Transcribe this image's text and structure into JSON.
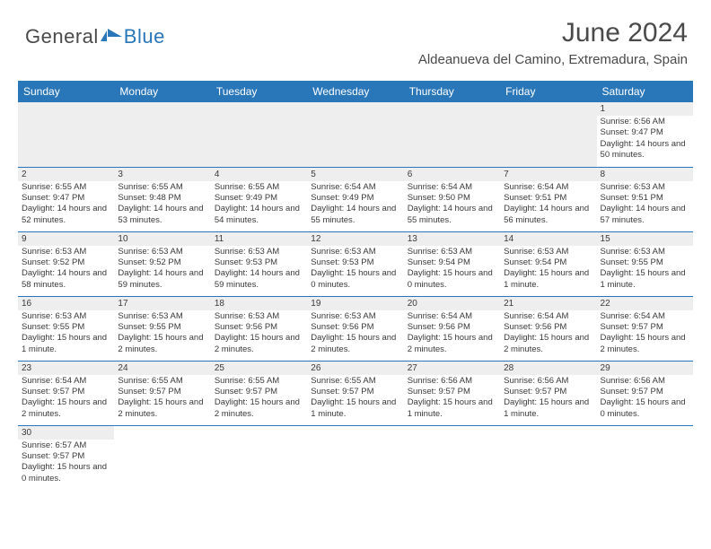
{
  "logo": {
    "part1": "General",
    "part2": "Blue"
  },
  "title": "June 2024",
  "location": "Aldeanueva del Camino, Extremadura, Spain",
  "colors": {
    "header_bg": "#2976b9",
    "header_text": "#ffffff",
    "daynum_bg": "#eeeeee",
    "text": "#3a3a3a",
    "logo_gray": "#4a4a4a",
    "logo_blue": "#2976b9"
  },
  "day_headers": [
    "Sunday",
    "Monday",
    "Tuesday",
    "Wednesday",
    "Thursday",
    "Friday",
    "Saturday"
  ],
  "first_weekday": 6,
  "days": [
    {
      "n": 1,
      "sunrise": "6:56 AM",
      "sunset": "9:47 PM",
      "daylight": "14 hours and 50 minutes."
    },
    {
      "n": 2,
      "sunrise": "6:55 AM",
      "sunset": "9:47 PM",
      "daylight": "14 hours and 52 minutes."
    },
    {
      "n": 3,
      "sunrise": "6:55 AM",
      "sunset": "9:48 PM",
      "daylight": "14 hours and 53 minutes."
    },
    {
      "n": 4,
      "sunrise": "6:55 AM",
      "sunset": "9:49 PM",
      "daylight": "14 hours and 54 minutes."
    },
    {
      "n": 5,
      "sunrise": "6:54 AM",
      "sunset": "9:49 PM",
      "daylight": "14 hours and 55 minutes."
    },
    {
      "n": 6,
      "sunrise": "6:54 AM",
      "sunset": "9:50 PM",
      "daylight": "14 hours and 55 minutes."
    },
    {
      "n": 7,
      "sunrise": "6:54 AM",
      "sunset": "9:51 PM",
      "daylight": "14 hours and 56 minutes."
    },
    {
      "n": 8,
      "sunrise": "6:53 AM",
      "sunset": "9:51 PM",
      "daylight": "14 hours and 57 minutes."
    },
    {
      "n": 9,
      "sunrise": "6:53 AM",
      "sunset": "9:52 PM",
      "daylight": "14 hours and 58 minutes."
    },
    {
      "n": 10,
      "sunrise": "6:53 AM",
      "sunset": "9:52 PM",
      "daylight": "14 hours and 59 minutes."
    },
    {
      "n": 11,
      "sunrise": "6:53 AM",
      "sunset": "9:53 PM",
      "daylight": "14 hours and 59 minutes."
    },
    {
      "n": 12,
      "sunrise": "6:53 AM",
      "sunset": "9:53 PM",
      "daylight": "15 hours and 0 minutes."
    },
    {
      "n": 13,
      "sunrise": "6:53 AM",
      "sunset": "9:54 PM",
      "daylight": "15 hours and 0 minutes."
    },
    {
      "n": 14,
      "sunrise": "6:53 AM",
      "sunset": "9:54 PM",
      "daylight": "15 hours and 1 minute."
    },
    {
      "n": 15,
      "sunrise": "6:53 AM",
      "sunset": "9:55 PM",
      "daylight": "15 hours and 1 minute."
    },
    {
      "n": 16,
      "sunrise": "6:53 AM",
      "sunset": "9:55 PM",
      "daylight": "15 hours and 1 minute."
    },
    {
      "n": 17,
      "sunrise": "6:53 AM",
      "sunset": "9:55 PM",
      "daylight": "15 hours and 2 minutes."
    },
    {
      "n": 18,
      "sunrise": "6:53 AM",
      "sunset": "9:56 PM",
      "daylight": "15 hours and 2 minutes."
    },
    {
      "n": 19,
      "sunrise": "6:53 AM",
      "sunset": "9:56 PM",
      "daylight": "15 hours and 2 minutes."
    },
    {
      "n": 20,
      "sunrise": "6:54 AM",
      "sunset": "9:56 PM",
      "daylight": "15 hours and 2 minutes."
    },
    {
      "n": 21,
      "sunrise": "6:54 AM",
      "sunset": "9:56 PM",
      "daylight": "15 hours and 2 minutes."
    },
    {
      "n": 22,
      "sunrise": "6:54 AM",
      "sunset": "9:57 PM",
      "daylight": "15 hours and 2 minutes."
    },
    {
      "n": 23,
      "sunrise": "6:54 AM",
      "sunset": "9:57 PM",
      "daylight": "15 hours and 2 minutes."
    },
    {
      "n": 24,
      "sunrise": "6:55 AM",
      "sunset": "9:57 PM",
      "daylight": "15 hours and 2 minutes."
    },
    {
      "n": 25,
      "sunrise": "6:55 AM",
      "sunset": "9:57 PM",
      "daylight": "15 hours and 2 minutes."
    },
    {
      "n": 26,
      "sunrise": "6:55 AM",
      "sunset": "9:57 PM",
      "daylight": "15 hours and 1 minute."
    },
    {
      "n": 27,
      "sunrise": "6:56 AM",
      "sunset": "9:57 PM",
      "daylight": "15 hours and 1 minute."
    },
    {
      "n": 28,
      "sunrise": "6:56 AM",
      "sunset": "9:57 PM",
      "daylight": "15 hours and 1 minute."
    },
    {
      "n": 29,
      "sunrise": "6:56 AM",
      "sunset": "9:57 PM",
      "daylight": "15 hours and 0 minutes."
    },
    {
      "n": 30,
      "sunrise": "6:57 AM",
      "sunset": "9:57 PM",
      "daylight": "15 hours and 0 minutes."
    }
  ],
  "labels": {
    "sunrise": "Sunrise:",
    "sunset": "Sunset:",
    "daylight": "Daylight:"
  }
}
